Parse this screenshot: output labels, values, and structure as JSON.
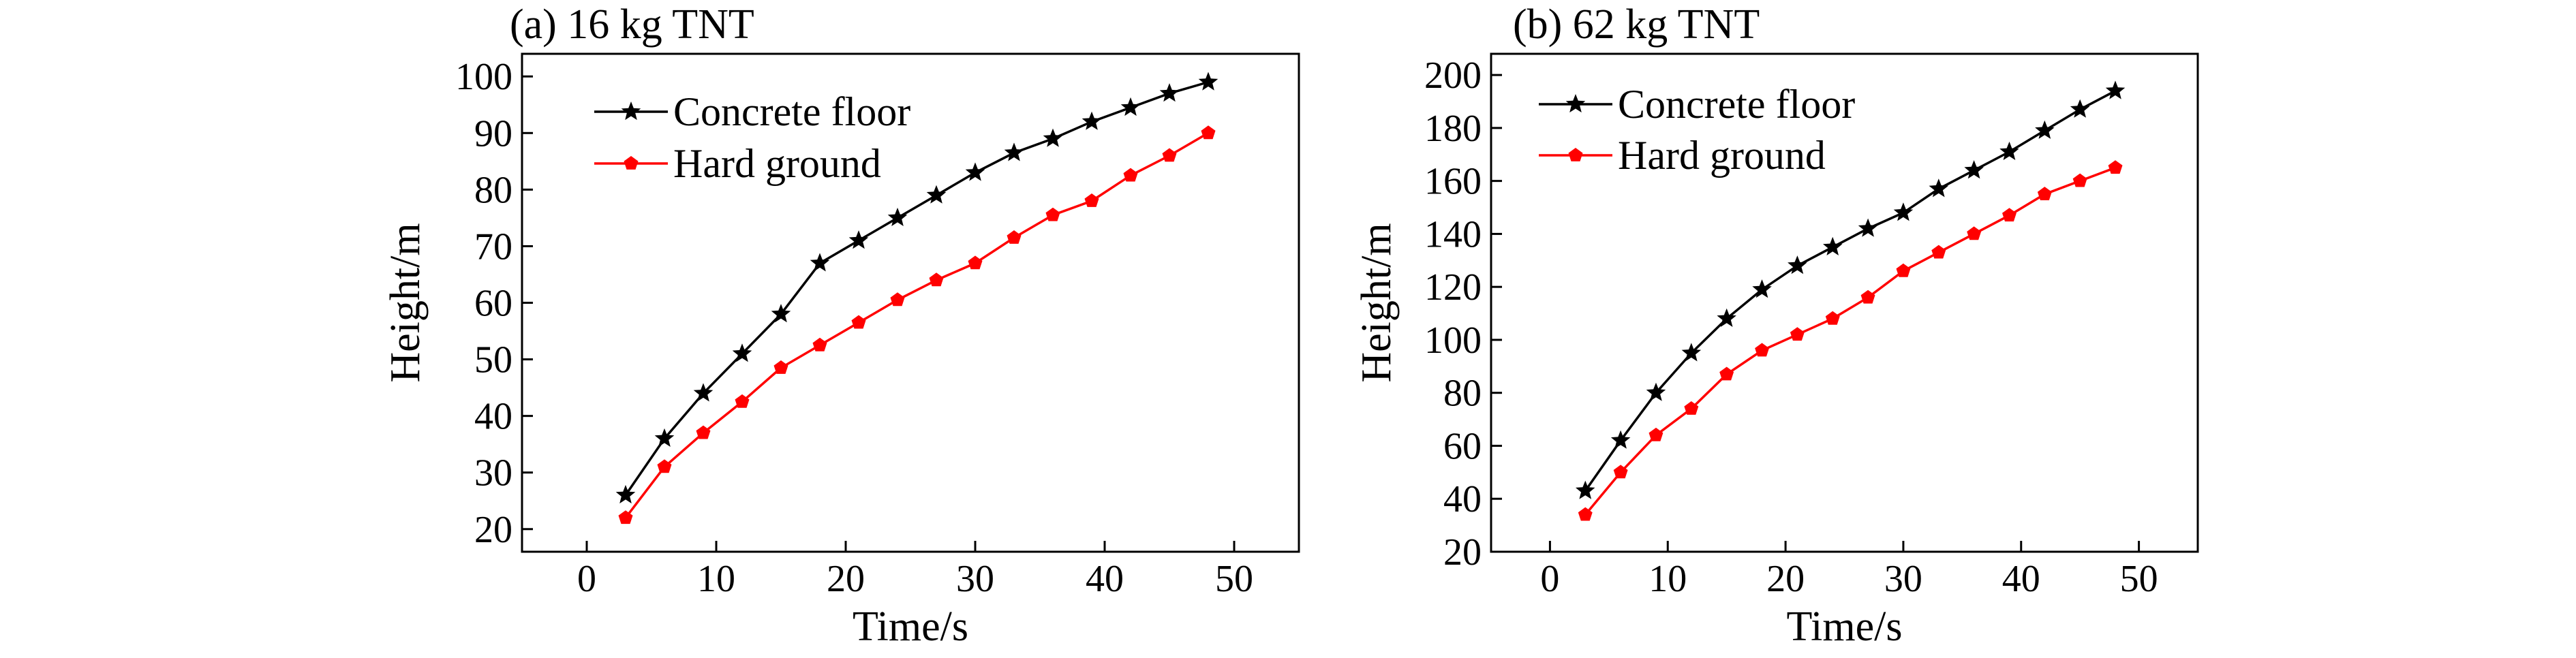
{
  "chart_data": [
    {
      "type": "line",
      "title": "(a) 16 kg TNT",
      "xlabel": "Time/s",
      "ylabel": "Height/m",
      "xlim": [
        -5,
        55
      ],
      "ylim": [
        16,
        104
      ],
      "xticks": [
        0,
        10,
        20,
        30,
        40,
        50
      ],
      "yticks": [
        20,
        30,
        40,
        50,
        60,
        70,
        80,
        90,
        100
      ],
      "legend_position": "top-left",
      "x": [
        3,
        6,
        9,
        12,
        15,
        18,
        21,
        24,
        27,
        30,
        33,
        36,
        39,
        42,
        45,
        48
      ],
      "series": [
        {
          "name": "Concrete floor",
          "color": "#000000",
          "marker": "star",
          "values": [
            26,
            36,
            44,
            51,
            58,
            67,
            71,
            75,
            79,
            83,
            86.5,
            89,
            92,
            94.5,
            97,
            99
          ]
        },
        {
          "name": "Hard ground",
          "color": "#ff0000",
          "marker": "pentagon",
          "values": [
            22,
            31,
            37,
            42.5,
            48.5,
            52.5,
            56.5,
            60.5,
            64,
            67,
            71.5,
            75.5,
            78,
            82.5,
            86,
            90
          ]
        }
      ]
    },
    {
      "type": "line",
      "title": "(b) 62 kg TNT",
      "xlabel": "Time/s",
      "ylabel": "Height/m",
      "xlim": [
        -5,
        55
      ],
      "ylim": [
        20,
        208
      ],
      "xticks": [
        0,
        10,
        20,
        30,
        40,
        50
      ],
      "yticks": [
        20,
        40,
        60,
        80,
        100,
        120,
        140,
        160,
        180,
        200
      ],
      "legend_position": "top-left",
      "x": [
        3,
        6,
        9,
        12,
        15,
        18,
        21,
        24,
        27,
        30,
        33,
        36,
        39,
        42,
        45,
        48
      ],
      "series": [
        {
          "name": "Concrete floor",
          "color": "#000000",
          "marker": "star",
          "values": [
            43,
            62,
            80,
            95,
            108,
            119,
            128,
            135,
            142,
            148,
            157,
            164,
            171,
            179,
            187,
            194
          ]
        },
        {
          "name": "Hard ground",
          "color": "#ff0000",
          "marker": "pentagon",
          "values": [
            34,
            50,
            64,
            74,
            87,
            96,
            102,
            108,
            116,
            126,
            133,
            140,
            147,
            155,
            160,
            165
          ]
        }
      ]
    }
  ]
}
